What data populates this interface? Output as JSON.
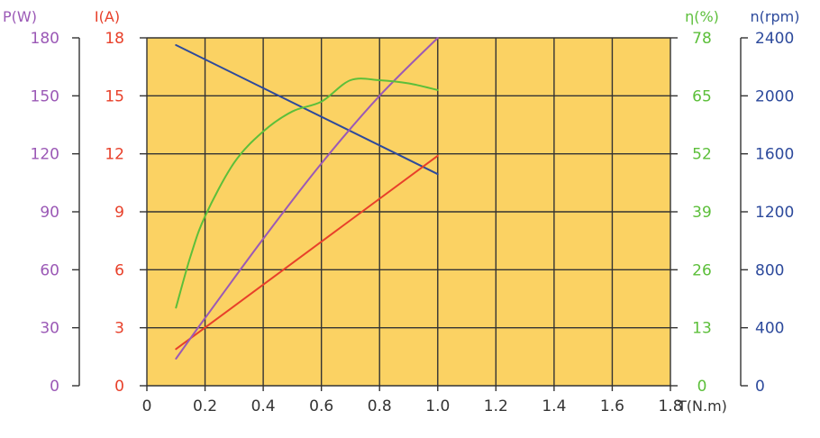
{
  "chart_data": {
    "type": "line",
    "colors": {
      "plot_bg": "#FBD263",
      "grid": "#333333",
      "power": "#9B59B6",
      "current": "#E8402A",
      "efficiency": "#5CBF3A",
      "speed": "#2D4A9C",
      "axis": "#333333"
    },
    "x_axis": {
      "label": "T(N.m)",
      "ticks": [
        "0",
        "0.2",
        "0.4",
        "0.6",
        "0.8",
        "1.0",
        "1.2",
        "1.4",
        "1.6",
        "1.8"
      ],
      "range": [
        0,
        1.8
      ]
    },
    "y_axes": [
      {
        "id": "power",
        "title": "P(W)",
        "range": [
          0,
          180
        ],
        "ticks": [
          "0",
          "30",
          "60",
          "90",
          "120",
          "150",
          "180"
        ]
      },
      {
        "id": "current",
        "title": "I(A)",
        "range": [
          0,
          18
        ],
        "ticks": [
          "0",
          "3",
          "6",
          "9",
          "12",
          "15",
          "18"
        ]
      },
      {
        "id": "efficiency",
        "title": "η(%)",
        "range": [
          0,
          78
        ],
        "ticks": [
          "0",
          "13",
          "26",
          "39",
          "52",
          "65",
          "78"
        ]
      },
      {
        "id": "speed",
        "title": "n(rpm)",
        "range": [
          0,
          2400
        ],
        "ticks": [
          "0",
          "400",
          "800",
          "1200",
          "1600",
          "2000",
          "2400"
        ]
      }
    ],
    "grid": true,
    "series": [
      {
        "id": "speed",
        "axis": "speed",
        "x": [
          0.1,
          1.0
        ],
        "y": [
          2350,
          1460
        ]
      },
      {
        "id": "current",
        "axis": "current",
        "x": [
          0.1,
          1.0
        ],
        "y": [
          1.9,
          11.9
        ]
      },
      {
        "id": "power",
        "axis": "power",
        "x": [
          0.1,
          0.2,
          0.4,
          0.6,
          0.8,
          1.0
        ],
        "y": [
          14,
          35,
          76,
          115,
          150,
          180
        ]
      },
      {
        "id": "efficiency",
        "axis": "efficiency",
        "x": [
          0.1,
          0.15,
          0.2,
          0.3,
          0.4,
          0.5,
          0.6,
          0.7,
          0.8,
          0.9,
          1.0
        ],
        "y": [
          17.5,
          29,
          38,
          50,
          57,
          61.5,
          63.7,
          68.5,
          68.5,
          67.8,
          66.3
        ]
      }
    ]
  }
}
